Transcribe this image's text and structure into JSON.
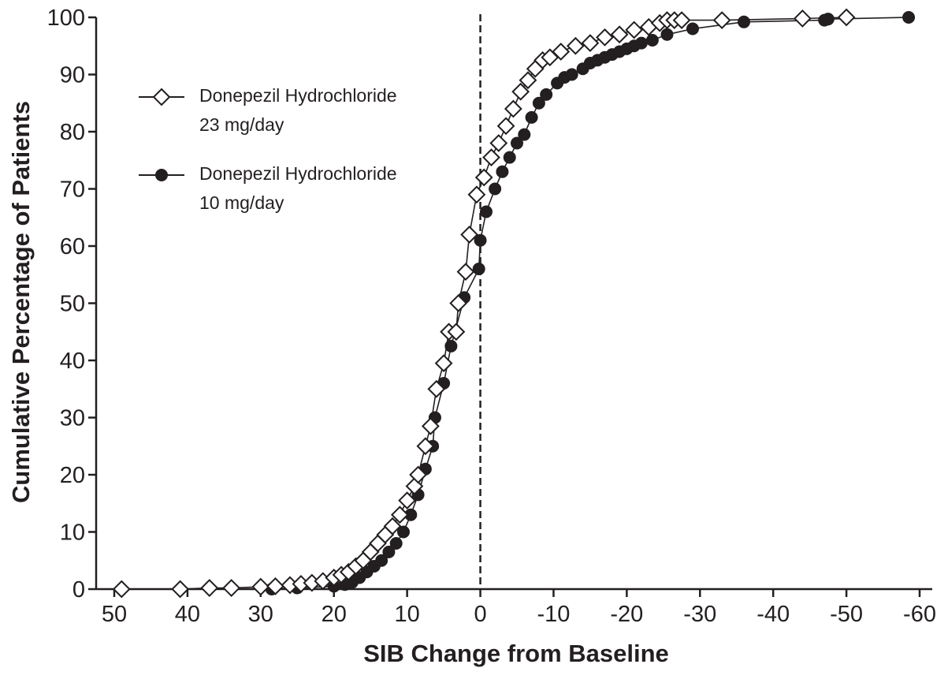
{
  "chart_data": {
    "type": "line",
    "xlabel": "SIB Change from Baseline",
    "ylabel": "Cumulative Percentage of Patients",
    "xlim": [
      50,
      -60
    ],
    "ylim": [
      0,
      100
    ],
    "x_ticks": [
      50,
      40,
      30,
      20,
      10,
      0,
      -10,
      -20,
      -30,
      -40,
      -50,
      -60
    ],
    "y_ticks": [
      0,
      10,
      20,
      30,
      40,
      50,
      60,
      70,
      80,
      90,
      100
    ],
    "reference_line_x": 0,
    "legend_position": "upper-left",
    "series": [
      {
        "name": "Donepezil Hydrochloride\n23 mg/day",
        "marker": "open-diamond",
        "color": "#231f20",
        "points": [
          [
            49,
            0
          ],
          [
            41,
            0
          ],
          [
            37,
            0.2
          ],
          [
            34,
            0.2
          ],
          [
            30,
            0.4
          ],
          [
            28,
            0.5
          ],
          [
            26,
            0.7
          ],
          [
            24.5,
            0.9
          ],
          [
            23,
            1.1
          ],
          [
            21.5,
            1.4
          ],
          [
            20,
            2
          ],
          [
            19,
            2.5
          ],
          [
            18,
            3
          ],
          [
            17,
            4
          ],
          [
            16,
            5
          ],
          [
            15,
            6.5
          ],
          [
            14,
            8
          ],
          [
            13,
            9.5
          ],
          [
            12,
            11
          ],
          [
            11,
            13
          ],
          [
            10,
            15.5
          ],
          [
            9,
            18
          ],
          [
            8.5,
            20
          ],
          [
            7.5,
            25
          ],
          [
            6.8,
            28.5
          ],
          [
            6,
            35
          ],
          [
            5,
            39.5
          ],
          [
            4.3,
            45
          ],
          [
            3.3,
            45
          ],
          [
            3,
            50
          ],
          [
            2,
            55.5
          ],
          [
            1.5,
            62
          ],
          [
            0.5,
            69
          ],
          [
            -0.5,
            72
          ],
          [
            -1.5,
            75.5
          ],
          [
            -2.5,
            78
          ],
          [
            -3.5,
            81
          ],
          [
            -4.5,
            84
          ],
          [
            -5.5,
            87
          ],
          [
            -6.5,
            89
          ],
          [
            -7.5,
            91
          ],
          [
            -8.5,
            92.5
          ],
          [
            -9.5,
            93
          ],
          [
            -11,
            94
          ],
          [
            -13,
            95
          ],
          [
            -15,
            95.5
          ],
          [
            -17,
            96.5
          ],
          [
            -19,
            97
          ],
          [
            -21,
            97.8
          ],
          [
            -23,
            98.3
          ],
          [
            -24.5,
            99
          ],
          [
            -25.5,
            99.5
          ],
          [
            -26.5,
            99.5
          ],
          [
            -27.5,
            99.5
          ],
          [
            -33,
            99.5
          ],
          [
            -44,
            99.8
          ],
          [
            -50,
            100
          ]
        ]
      },
      {
        "name": "Donepezil Hydrochloride\n10 mg/day",
        "marker": "filled-circle",
        "color": "#231f20",
        "points": [
          [
            28.5,
            0
          ],
          [
            25,
            0.2
          ],
          [
            20,
            0.5
          ],
          [
            18.5,
            0.8
          ],
          [
            17.5,
            1.2
          ],
          [
            16.5,
            2
          ],
          [
            15.5,
            3
          ],
          [
            14.5,
            4
          ],
          [
            13.5,
            5
          ],
          [
            12.5,
            6.5
          ],
          [
            11.5,
            8
          ],
          [
            10.5,
            10
          ],
          [
            9.5,
            13
          ],
          [
            8.5,
            16.5
          ],
          [
            7.5,
            21
          ],
          [
            6.5,
            25
          ],
          [
            6.2,
            30
          ],
          [
            5,
            36
          ],
          [
            4,
            42.5
          ],
          [
            2.2,
            51
          ],
          [
            0.2,
            56
          ],
          [
            0,
            61
          ],
          [
            -0.8,
            66
          ],
          [
            -2,
            70
          ],
          [
            -3,
            73
          ],
          [
            -4,
            75.5
          ],
          [
            -5,
            78
          ],
          [
            -6,
            79.5
          ],
          [
            -7,
            82.5
          ],
          [
            -8,
            85
          ],
          [
            -9,
            86.5
          ],
          [
            -10.5,
            88.5
          ],
          [
            -11.5,
            89.5
          ],
          [
            -12.5,
            90
          ],
          [
            -14,
            91
          ],
          [
            -15,
            92
          ],
          [
            -16,
            92.5
          ],
          [
            -17,
            93
          ],
          [
            -18,
            93.5
          ],
          [
            -19,
            94
          ],
          [
            -20,
            94.5
          ],
          [
            -21,
            95
          ],
          [
            -22,
            95.5
          ],
          [
            -23.5,
            96
          ],
          [
            -25.5,
            97
          ],
          [
            -29,
            98
          ],
          [
            -36,
            99.2
          ],
          [
            -47,
            99.5
          ],
          [
            -47.5,
            99.7
          ],
          [
            -58.5,
            100
          ]
        ]
      }
    ]
  }
}
